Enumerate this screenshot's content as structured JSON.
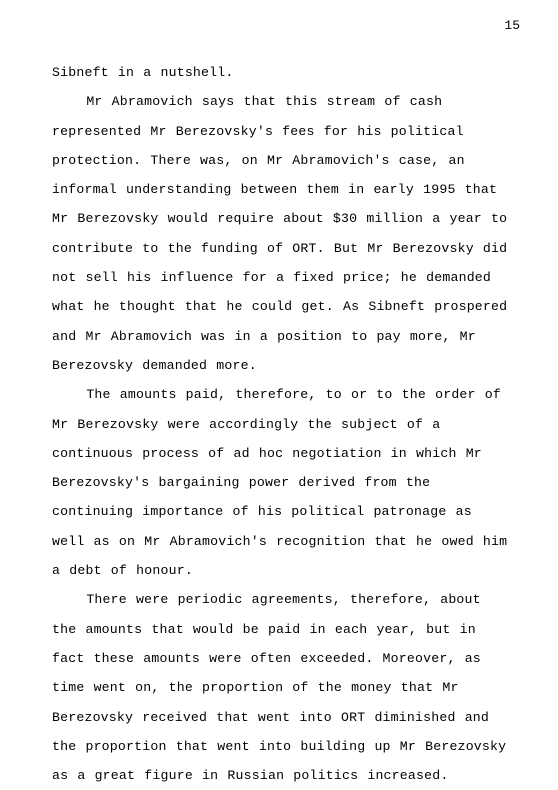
{
  "pageNumber": "15",
  "paragraphs": [
    {
      "indent": false,
      "text": "Sibneft in a nutshell."
    },
    {
      "indent": true,
      "text": "Mr Abramovich says that this stream of cash represented Mr Berezovsky's fees for his political protection.  There was, on Mr Abramovich's case, an informal understanding between them in early 1995 that Mr Berezovsky would require about $30 million a year to contribute to the funding of ORT.  But Mr Berezovsky did not sell his influence for a fixed price; he demanded what he thought that he could get.  As Sibneft prospered and Mr Abramovich was in a position to pay more, Mr Berezovsky demanded more."
    },
    {
      "indent": true,
      "text": "The amounts paid, therefore, to or to the order of Mr Berezovsky were accordingly the subject of a continuous process of ad hoc negotiation in which Mr Berezovsky's bargaining power derived from the continuing importance of his political patronage as well as on Mr Abramovich's recognition that he owed him a debt of honour."
    },
    {
      "indent": true,
      "text": "There were periodic agreements, therefore, about the amounts that would be paid in each year, but in fact these amounts were often exceeded.  Moreover, as time went on, the proportion of the money that Mr Berezovsky received that went into ORT diminished and the proportion that went into building up Mr Berezovsky as a great figure in Russian politics increased."
    }
  ]
}
